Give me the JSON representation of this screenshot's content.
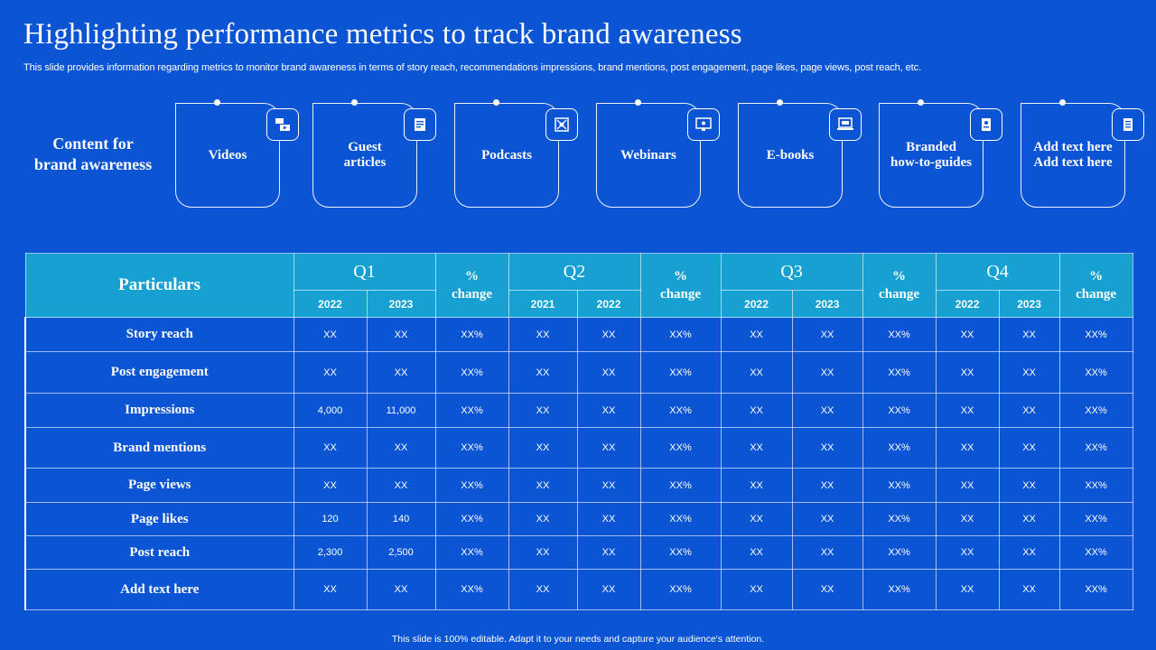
{
  "title": "Highlighting performance metrics to track brand awareness",
  "subtitle": "This slide provides information regarding metrics to monitor brand awareness in terms of story reach, recommendations impressions, brand mentions, post engagement, page likes, page views, post reach, etc.",
  "content_label": "Content for\nbrand awareness",
  "cards": [
    {
      "label": "Videos",
      "icon": "video-icon"
    },
    {
      "label": "Guest\narticles",
      "icon": "article-icon"
    },
    {
      "label": "Podcasts",
      "icon": "podcast-icon"
    },
    {
      "label": "Webinars",
      "icon": "webinar-icon"
    },
    {
      "label": "E-books",
      "icon": "ebook-icon"
    },
    {
      "label": "Branded\nhow-to-guides",
      "icon": "guide-icon"
    },
    {
      "label": "Add text here\nAdd text here",
      "icon": "document-icon"
    }
  ],
  "table": {
    "particulars_header": "Particulars",
    "change_header": "%\nchange",
    "quarters": [
      {
        "name": "Q1",
        "years": [
          "2022",
          "2023"
        ]
      },
      {
        "name": "Q2",
        "years": [
          "2021",
          "2022"
        ]
      },
      {
        "name": "Q3",
        "years": [
          "2022",
          "2023"
        ]
      },
      {
        "name": "Q4",
        "years": [
          "2022",
          "2023"
        ]
      }
    ],
    "rows": [
      {
        "label": "Story reach",
        "cells": [
          "XX",
          "XX",
          "XX%",
          "XX",
          "XX",
          "XX%",
          "XX",
          "XX",
          "XX%",
          "XX",
          "XX",
          "XX%"
        ]
      },
      {
        "label": "Post engagement",
        "cells": [
          "XX",
          "XX",
          "XX%",
          "XX",
          "XX",
          "XX%",
          "XX",
          "XX",
          "XX%",
          "XX",
          "XX",
          "XX%"
        ]
      },
      {
        "label": "Impressions",
        "cells": [
          "4,000",
          "11,000",
          "XX%",
          "XX",
          "XX",
          "XX%",
          "XX",
          "XX",
          "XX%",
          "XX",
          "XX",
          "XX%"
        ]
      },
      {
        "label": "Brand  mentions",
        "cells": [
          "XX",
          "XX",
          "XX%",
          "XX",
          "XX",
          "XX%",
          "XX",
          "XX",
          "XX%",
          "XX",
          "XX",
          "XX%"
        ]
      },
      {
        "label": "Page views",
        "cells": [
          "XX",
          "XX",
          "XX%",
          "XX",
          "XX",
          "XX%",
          "XX",
          "XX",
          "XX%",
          "XX",
          "XX",
          "XX%"
        ]
      },
      {
        "label": "Page likes",
        "cells": [
          "120",
          "140",
          "XX%",
          "XX",
          "XX",
          "XX%",
          "XX",
          "XX",
          "XX%",
          "XX",
          "XX",
          "XX%"
        ]
      },
      {
        "label": "Post reach",
        "cells": [
          "2,300",
          "2,500",
          "XX%",
          "XX",
          "XX",
          "XX%",
          "XX",
          "XX",
          "XX%",
          "XX",
          "XX",
          "XX%"
        ]
      },
      {
        "label": "Add text here",
        "cells": [
          "XX",
          "XX",
          "XX%",
          "XX",
          "XX",
          "XX%",
          "XX",
          "XX",
          "XX%",
          "XX",
          "XX",
          "XX%"
        ]
      }
    ]
  },
  "footer": "This slide is 100% editable. Adapt it to your needs and capture your audience's attention.",
  "colors": {
    "background": "#0b55d4",
    "header_cyan": "#16a1d2",
    "text": "#ffffff"
  }
}
